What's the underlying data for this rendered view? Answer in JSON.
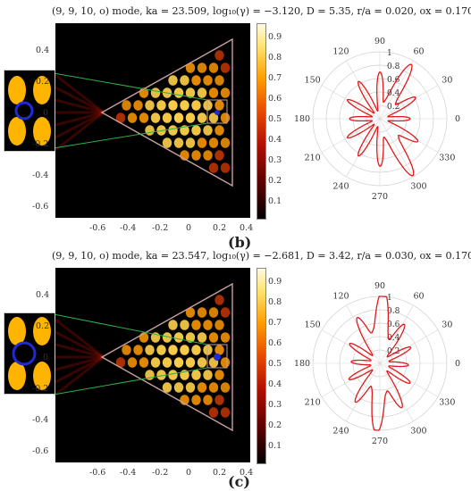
{
  "figure": {
    "panels": [
      {
        "id": "b",
        "label": "(b)",
        "title": "(9, 9, 10, o) mode,  ka = 23.509,  log₁₀(γ) = −3.120,  D = 5.35,  r/a = 0.020,  ox = 0.170",
        "xticks": [
          "-0.6",
          "-0.4",
          "-0.2",
          "0",
          "0.2",
          "0.4"
        ],
        "yticks": [
          "0.4",
          "0.2",
          "0",
          "-0.2",
          "-0.4",
          "-0.6"
        ],
        "cbar_ticks": [
          "0.9",
          "0.8",
          "0.7",
          "0.6",
          "0.5",
          "0.4",
          "0.3",
          "0.2",
          "0.1"
        ],
        "polar_angles": [
          "90",
          "60",
          "30",
          "0",
          "330",
          "300",
          "270",
          "240",
          "210",
          "180",
          "150",
          "120"
        ],
        "polar_radii": [
          "1",
          "0.8",
          "0.6",
          "0.4",
          "0.2"
        ]
      },
      {
        "id": "c",
        "label": "(c)",
        "title": "(9, 9, 10, o) mode,  ka = 23.547,  log₁₀(γ) = −2.681,  D = 3.42,  r/a = 0.030,  ox = 0.170",
        "xticks": [
          "-0.6",
          "-0.4",
          "-0.2",
          "0",
          "0.2",
          "0.4"
        ],
        "yticks": [
          "0.4",
          "0.2",
          "0",
          "-0.2",
          "-0.4",
          "-0.6"
        ],
        "cbar_ticks": [
          "0.9",
          "0.8",
          "0.7",
          "0.6",
          "0.5",
          "0.4",
          "0.3",
          "0.2",
          "0.1"
        ],
        "polar_angles": [
          "90",
          "60",
          "30",
          "0",
          "330",
          "300",
          "270",
          "240",
          "210",
          "180",
          "150",
          "120"
        ],
        "polar_radii": [
          "1",
          "0.8",
          "0.6",
          "0.4",
          "0.2"
        ]
      }
    ]
  },
  "colors": {
    "triangle": "#c8a0a0",
    "zoom_line": "#2bb04a",
    "polar_curve": "#e0191b",
    "hole": "#1f2bd6"
  }
}
